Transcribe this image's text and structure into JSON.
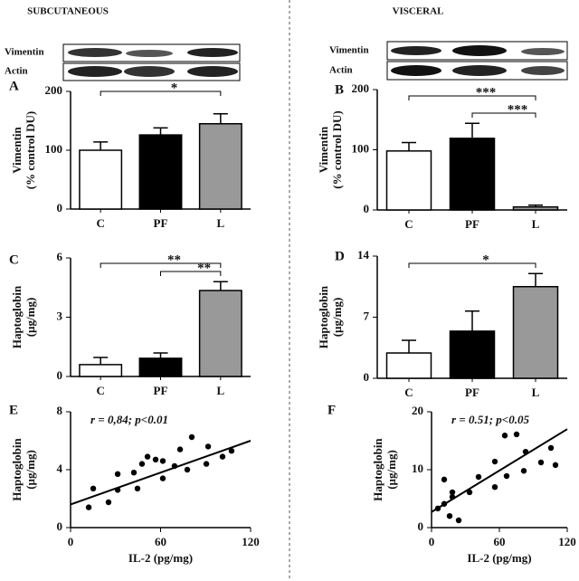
{
  "columns": [
    "SUBCUTANEOUS",
    "VISCERAL"
  ],
  "blots": [
    {
      "labels": [
        "Vimentin",
        "Actin"
      ]
    },
    {
      "labels": [
        "Vimentin",
        "Actin"
      ]
    }
  ],
  "chart_data": [
    {
      "type": "bar",
      "letter": "A",
      "ylabel": [
        "Vimentin",
        "(% control DU)"
      ],
      "categories": [
        "C",
        "PF",
        "L"
      ],
      "values": [
        100,
        126,
        145
      ],
      "errors": [
        14,
        12,
        17
      ],
      "colors": [
        "#ffffff",
        "#000000",
        "#999999"
      ],
      "ylim": [
        0,
        200
      ],
      "yticks": [
        0,
        100,
        200
      ],
      "annotations": [
        "*"
      ]
    },
    {
      "type": "bar",
      "letter": "B",
      "ylabel": [
        "Vimentin",
        "(% control DU)"
      ],
      "categories": [
        "C",
        "PF",
        "L"
      ],
      "values": [
        98,
        119,
        5
      ],
      "errors": [
        14,
        25,
        3
      ],
      "colors": [
        "#ffffff",
        "#000000",
        "#999999"
      ],
      "ylim": [
        0,
        200
      ],
      "yticks": [
        0,
        100,
        200
      ],
      "annotations": [
        "***",
        "***"
      ]
    },
    {
      "type": "bar",
      "letter": "C",
      "ylabel": [
        "Haptoglobin",
        "(µg/mg)"
      ],
      "categories": [
        "C",
        "PF",
        "L"
      ],
      "values": [
        0.6,
        0.92,
        4.35
      ],
      "errors": [
        0.36,
        0.27,
        0.45
      ],
      "colors": [
        "#ffffff",
        "#000000",
        "#999999"
      ],
      "ylim": [
        0,
        6
      ],
      "yticks": [
        0,
        3,
        6
      ],
      "annotations": [
        "**",
        "**"
      ]
    },
    {
      "type": "bar",
      "letter": "D",
      "ylabel": [
        "Haptoglobin",
        "(µg/mg)"
      ],
      "categories": [
        "C",
        "PF",
        "L"
      ],
      "values": [
        2.9,
        5.4,
        10.5
      ],
      "errors": [
        1.45,
        2.3,
        1.5
      ],
      "colors": [
        "#ffffff",
        "#000000",
        "#999999"
      ],
      "ylim": [
        0,
        14
      ],
      "yticks": [
        0,
        7,
        14
      ],
      "annotations": [
        "*"
      ]
    },
    {
      "type": "scatter",
      "letter": "E",
      "ylabel": [
        "Haptoglobin",
        "(µg/mg)"
      ],
      "xlabel": "IL-2 (pg/mg)",
      "annotation": "r = 0,84; p<0.01",
      "color": "#000000",
      "x": [
        12.1,
        15.1,
        25.3,
        31.4,
        31.4,
        42.2,
        44.6,
        47.6,
        51.3,
        56.7,
        61.5,
        61.5,
        69.3,
        73,
        77.8,
        80.8,
        90.5,
        91.7,
        101.3,
        107.3
      ],
      "y": [
        1.4,
        2.7,
        1.75,
        2.6,
        3.7,
        3.8,
        2.7,
        4.4,
        4.9,
        4.7,
        4.6,
        3.4,
        4.25,
        5.4,
        4,
        6.25,
        4.4,
        5.6,
        4.9,
        5.3
      ],
      "fit": {
        "x": [
          0,
          120
        ],
        "y": [
          1.6,
          6.0
        ]
      },
      "xlim": [
        0,
        120
      ],
      "xticks": [
        0,
        60,
        120
      ],
      "ylim": [
        0,
        8
      ],
      "yticks": [
        0,
        4,
        8
      ]
    },
    {
      "type": "scatter",
      "letter": "F",
      "ylabel": [
        "Haptoglobin",
        "(µg/mg)"
      ],
      "xlabel": "IL-2 (pg/mg)",
      "annotation": "r = 0.51; p<0.05",
      "color": "#000000",
      "x": [
        5.6,
        11.2,
        11.2,
        16,
        18.4,
        18.4,
        24,
        33.6,
        41.6,
        56,
        56,
        64.8,
        66.4,
        75.2,
        81.6,
        83.2,
        96.8,
        105.6,
        109.6
      ],
      "y": [
        3.3,
        4.1,
        8.3,
        2.0,
        6.1,
        5.3,
        1.25,
        6.1,
        8.75,
        7.0,
        11.4,
        15.9,
        8.9,
        16.1,
        9.8,
        13.1,
        11.25,
        13.75,
        10.8
      ],
      "fit": {
        "x": [
          0,
          120
        ],
        "y": [
          2.7,
          17
        ]
      },
      "xlim": [
        0,
        120
      ],
      "xticks": [
        0,
        60,
        120
      ],
      "ylim": [
        0,
        20
      ],
      "yticks": [
        0,
        10,
        20
      ]
    }
  ]
}
